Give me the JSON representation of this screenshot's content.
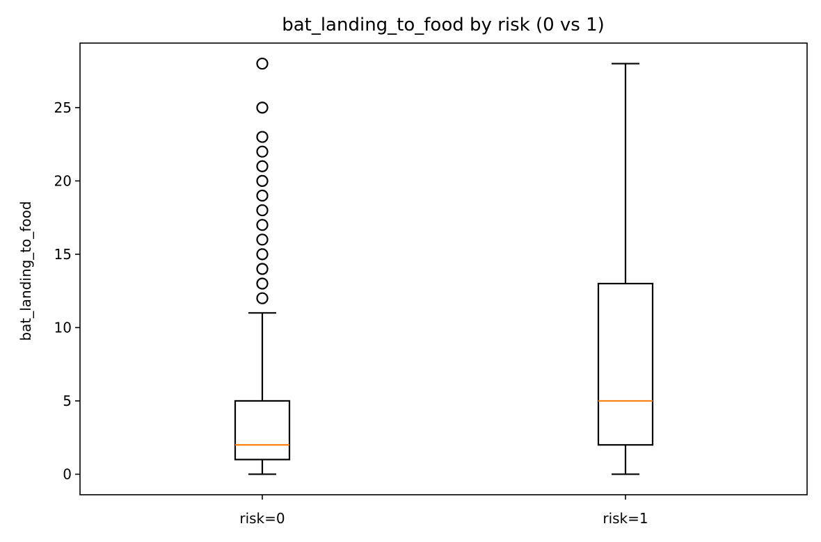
{
  "chart_data": {
    "type": "box",
    "title": "bat_landing_to_food by risk (0 vs 1)",
    "xlabel": "",
    "ylabel": "bat_landing_to_food",
    "ylim": [
      -1.4,
      29.4
    ],
    "yticks": [
      0,
      5,
      10,
      15,
      20,
      25
    ],
    "categories": [
      "risk=0",
      "risk=1"
    ],
    "boxes": [
      {
        "category": "risk=0",
        "whisker_low": 0,
        "q1": 1,
        "median": 2,
        "q3": 5,
        "whisker_high": 11,
        "outliers": [
          12,
          13,
          14,
          15,
          16,
          17,
          18,
          19,
          20,
          21,
          22,
          23,
          25,
          28
        ]
      },
      {
        "category": "risk=1",
        "whisker_low": 0,
        "q1": 2,
        "median": 5,
        "q3": 13,
        "whisker_high": 28,
        "outliers": []
      }
    ],
    "colors": {
      "box": "#000000",
      "median": "#ff7f0e"
    },
    "grid": false,
    "legend": "none"
  }
}
